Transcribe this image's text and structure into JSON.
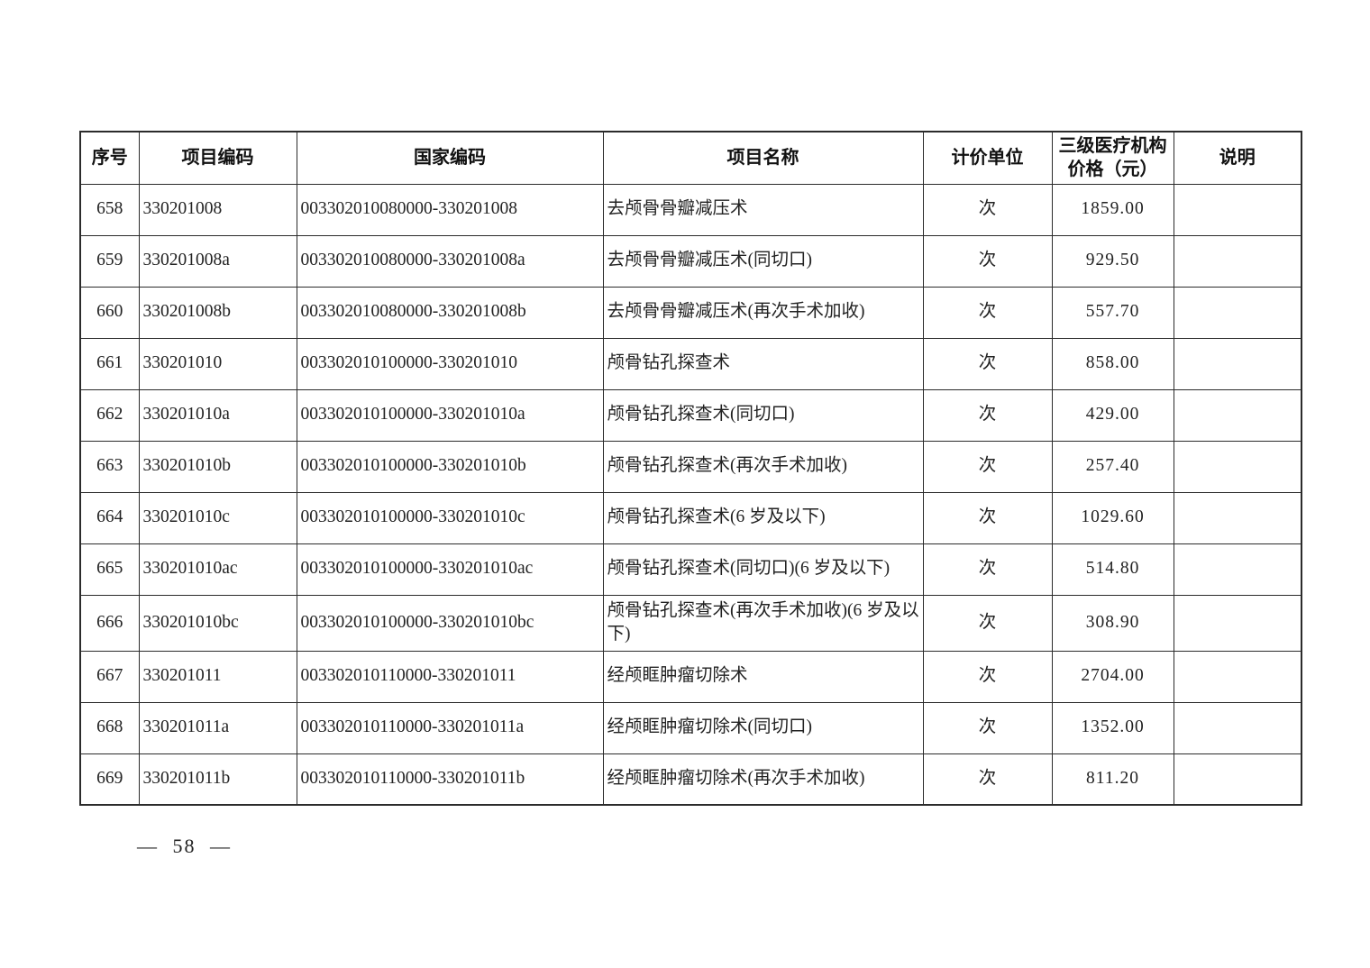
{
  "document": {
    "footer": {
      "page_number": "— 58 —"
    }
  },
  "table": {
    "columns": {
      "seq": "序号",
      "code": "项目编码",
      "national_code": "国家编码",
      "name": "项目名称",
      "unit": "计价单位",
      "price_line1": "三级医疗机构",
      "price_line2": "价格（元）",
      "note": "说明"
    },
    "rows": [
      {
        "seq": "658",
        "code": "330201008",
        "national_code": "003302010080000-330201008",
        "name": "去颅骨骨瓣减压术",
        "unit": "次",
        "price": "1859.00",
        "note": ""
      },
      {
        "seq": "659",
        "code": "330201008a",
        "national_code": "003302010080000-330201008a",
        "name": "去颅骨骨瓣减压术(同切口)",
        "unit": "次",
        "price": "929.50",
        "note": ""
      },
      {
        "seq": "660",
        "code": "330201008b",
        "national_code": "003302010080000-330201008b",
        "name": "去颅骨骨瓣减压术(再次手术加收)",
        "unit": "次",
        "price": "557.70",
        "note": ""
      },
      {
        "seq": "661",
        "code": "330201010",
        "national_code": "003302010100000-330201010",
        "name": "颅骨钻孔探查术",
        "unit": "次",
        "price": "858.00",
        "note": ""
      },
      {
        "seq": "662",
        "code": "330201010a",
        "national_code": "003302010100000-330201010a",
        "name": "颅骨钻孔探查术(同切口)",
        "unit": "次",
        "price": "429.00",
        "note": ""
      },
      {
        "seq": "663",
        "code": "330201010b",
        "national_code": "003302010100000-330201010b",
        "name": "颅骨钻孔探查术(再次手术加收)",
        "unit": "次",
        "price": "257.40",
        "note": ""
      },
      {
        "seq": "664",
        "code": "330201010c",
        "national_code": "003302010100000-330201010c",
        "name": "颅骨钻孔探查术(6 岁及以下)",
        "unit": "次",
        "price": "1029.60",
        "note": ""
      },
      {
        "seq": "665",
        "code": "330201010ac",
        "national_code": "003302010100000-330201010ac",
        "name": "颅骨钻孔探查术(同切口)(6 岁及以下)",
        "unit": "次",
        "price": "514.80",
        "note": ""
      },
      {
        "seq": "666",
        "code": "330201010bc",
        "national_code": "003302010100000-330201010bc",
        "name": "颅骨钻孔探查术(再次手术加收)(6 岁及以下)",
        "unit": "次",
        "price": "308.90",
        "note": ""
      },
      {
        "seq": "667",
        "code": "330201011",
        "national_code": "003302010110000-330201011",
        "name": "经颅眶肿瘤切除术",
        "unit": "次",
        "price": "2704.00",
        "note": ""
      },
      {
        "seq": "668",
        "code": "330201011a",
        "national_code": "003302010110000-330201011a",
        "name": "经颅眶肿瘤切除术(同切口)",
        "unit": "次",
        "price": "1352.00",
        "note": ""
      },
      {
        "seq": "669",
        "code": "330201011b",
        "national_code": "003302010110000-330201011b",
        "name": "经颅眶肿瘤切除术(再次手术加收)",
        "unit": "次",
        "price": "811.20",
        "note": ""
      }
    ]
  }
}
